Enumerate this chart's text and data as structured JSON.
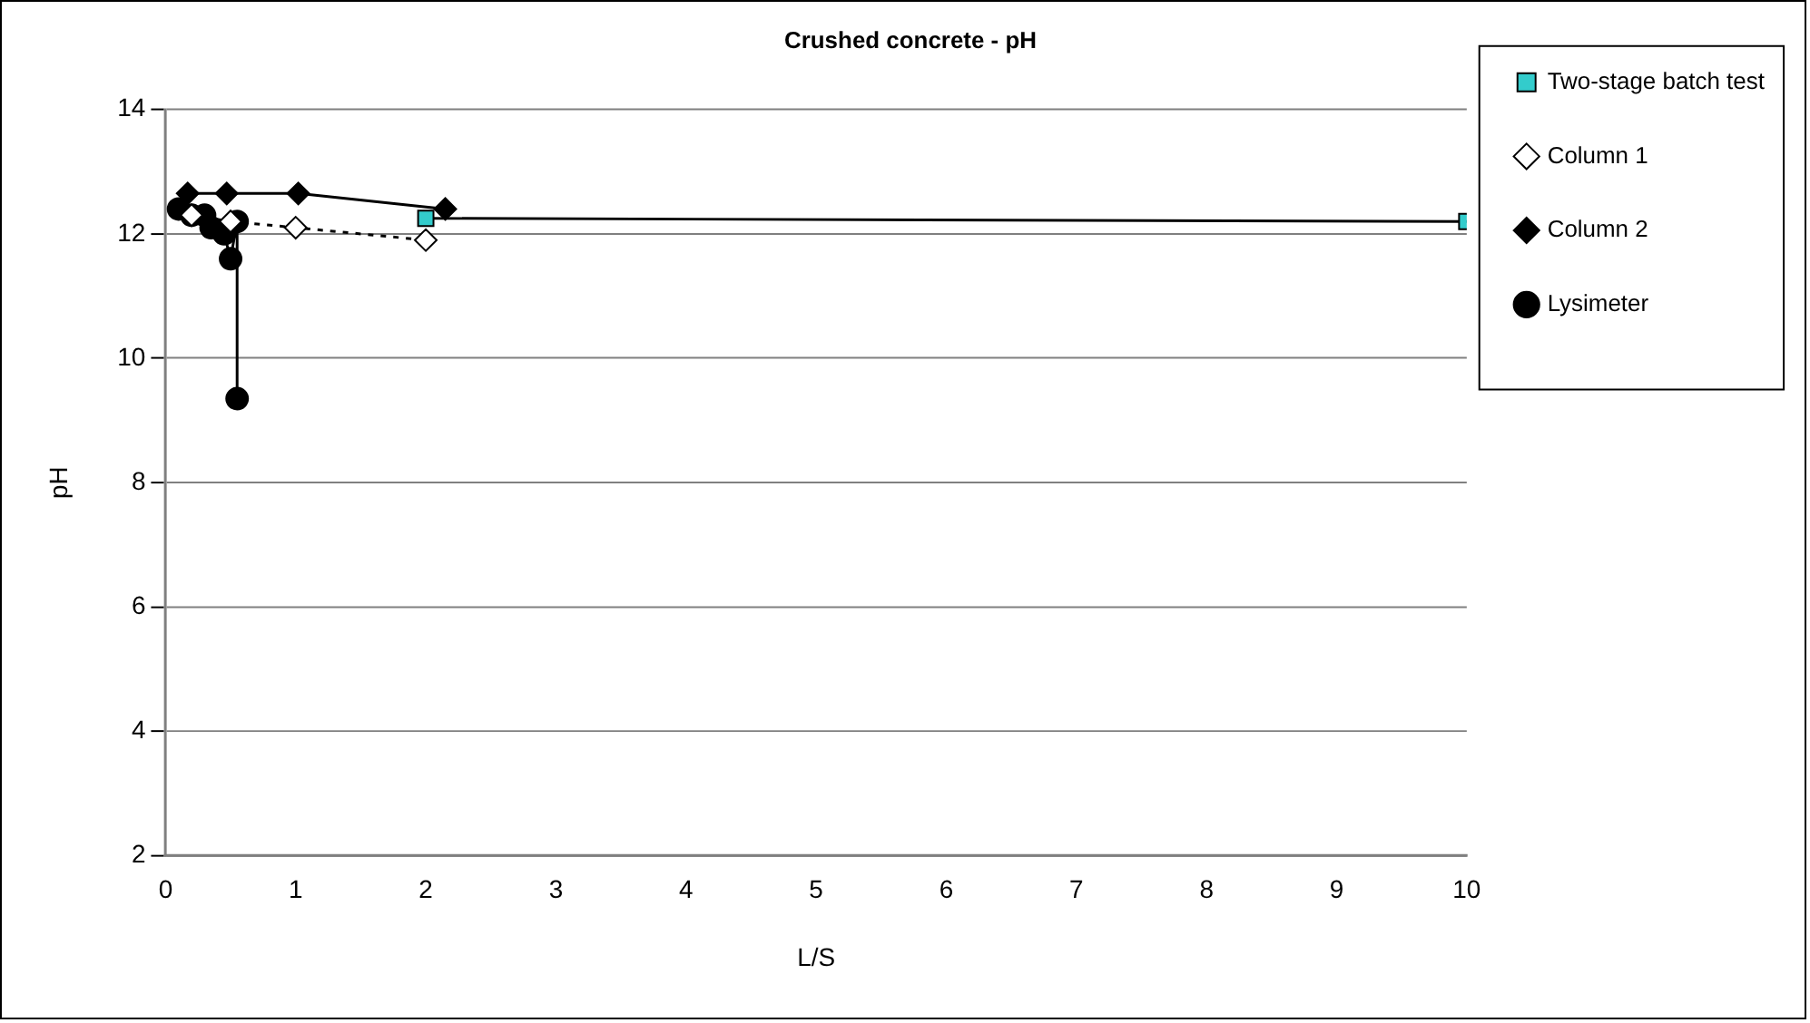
{
  "chart_data": {
    "type": "line",
    "title": "Crushed concrete - pH",
    "xlabel": "L/S",
    "ylabel": "pH",
    "xlim": [
      0,
      10
    ],
    "xticks": [
      0,
      1,
      2,
      3,
      4,
      5,
      6,
      7,
      8,
      9,
      10
    ],
    "ylim": [
      2,
      14
    ],
    "yticks": [
      2,
      4,
      6,
      8,
      10,
      12,
      14
    ],
    "grid": "y",
    "legend": "right",
    "series": [
      {
        "name": "Two-stage batch test",
        "color": "#33cccc",
        "marker": "square",
        "line_style": "solid",
        "x": [
          2,
          10
        ],
        "values": [
          12.25,
          12.2
        ]
      },
      {
        "name": "Column 1",
        "color": "#ffffff",
        "marker": "diamond",
        "line_style": "dotted",
        "x": [
          0.2,
          0.5,
          1.0,
          2.0
        ],
        "values": [
          12.3,
          12.2,
          12.1,
          11.9
        ]
      },
      {
        "name": "Column 2",
        "color": "#000000",
        "marker": "diamond",
        "line_style": "solid",
        "x": [
          0.17,
          0.47,
          1.02,
          2.15
        ],
        "values": [
          12.65,
          12.65,
          12.65,
          12.4
        ]
      },
      {
        "name": "Lysimeter",
        "color": "#000000",
        "marker": "circle",
        "line_style": "solid",
        "x": [
          0.1,
          0.2,
          0.3,
          0.35,
          0.45,
          0.5,
          0.55,
          0.55
        ],
        "values": [
          12.4,
          12.3,
          12.3,
          12.1,
          12.0,
          11.6,
          12.2,
          9.35
        ]
      }
    ]
  }
}
